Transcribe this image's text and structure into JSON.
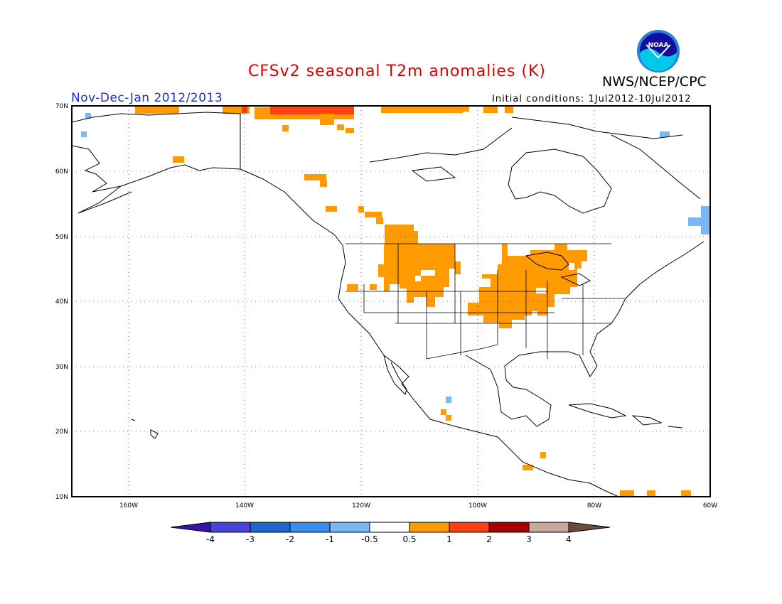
{
  "title": "CFSv2 seasonal T2m anomalies (K)",
  "agency": "NWS/NCEP/CPC",
  "logo_text": "NOAA",
  "period": "Nov-Dec-Jan 2012/2013",
  "initial_conditions": "Initial conditions: 1Jul2012-10Jul2012",
  "map": {
    "region": "North America",
    "projection": "lat-lon",
    "lon_range": [
      -172,
      -60
    ],
    "lat_range": [
      10,
      70
    ],
    "grid": "dotted",
    "lat_labels": [
      "70N",
      "60N",
      "50N",
      "40N",
      "30N",
      "20N",
      "10N"
    ],
    "lon_labels": [
      "160W",
      "140W",
      "120W",
      "100W",
      "80W",
      "60W"
    ]
  },
  "colorbar": {
    "labels": [
      "-4",
      "-3",
      "-2",
      "-1",
      "-0.5",
      "0.5",
      "1",
      "2",
      "3",
      "4"
    ],
    "colors": [
      "#3a13a8",
      "#4a43d8",
      "#1f66d0",
      "#3a8ef0",
      "#7ab8f5",
      "#ffffff",
      "#ff9a00",
      "#ff4010",
      "#a60000",
      "#c8a898",
      "#6b4a40"
    ]
  },
  "anomaly_regions": [
    {
      "level": "0.5 to 1",
      "color": "#ff9a00",
      "area": "Northern Plains / Upper Midwest"
    },
    {
      "level": "0.5 to 1",
      "color": "#ff9a00",
      "area": "Central Plains / Ohio Valley"
    },
    {
      "level": "0.5 to 1",
      "color": "#ff9a00",
      "area": "Arctic coast of Alaska and Canada"
    },
    {
      "level": "1 to 2",
      "color": "#ff4010",
      "area": "Beaufort Sea coast"
    },
    {
      "level": "-1 to -0.5",
      "color": "#7ab8f5",
      "area": "Labrador / Newfoundland"
    }
  ]
}
